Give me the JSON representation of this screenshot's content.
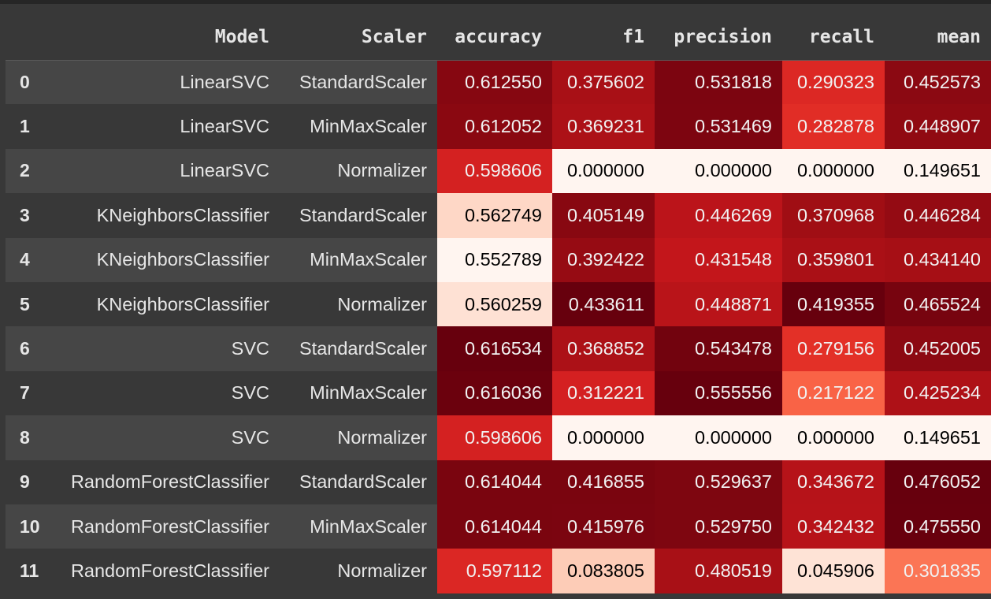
{
  "table": {
    "columns": [
      "Model",
      "Scaler",
      "accuracy",
      "f1",
      "precision",
      "recall",
      "mean"
    ],
    "rows": [
      {
        "index": "0",
        "model": "LinearSVC",
        "scaler": "StandardScaler",
        "accuracy": "0.612550",
        "f1": "0.375602",
        "precision": "0.531818",
        "recall": "0.290323",
        "mean": "0.452573"
      },
      {
        "index": "1",
        "model": "LinearSVC",
        "scaler": "MinMaxScaler",
        "accuracy": "0.612052",
        "f1": "0.369231",
        "precision": "0.531469",
        "recall": "0.282878",
        "mean": "0.448907"
      },
      {
        "index": "2",
        "model": "LinearSVC",
        "scaler": "Normalizer",
        "accuracy": "0.598606",
        "f1": "0.000000",
        "precision": "0.000000",
        "recall": "0.000000",
        "mean": "0.149651"
      },
      {
        "index": "3",
        "model": "KNeighborsClassifier",
        "scaler": "StandardScaler",
        "accuracy": "0.562749",
        "f1": "0.405149",
        "precision": "0.446269",
        "recall": "0.370968",
        "mean": "0.446284"
      },
      {
        "index": "4",
        "model": "KNeighborsClassifier",
        "scaler": "MinMaxScaler",
        "accuracy": "0.552789",
        "f1": "0.392422",
        "precision": "0.431548",
        "recall": "0.359801",
        "mean": "0.434140"
      },
      {
        "index": "5",
        "model": "KNeighborsClassifier",
        "scaler": "Normalizer",
        "accuracy": "0.560259",
        "f1": "0.433611",
        "precision": "0.448871",
        "recall": "0.419355",
        "mean": "0.465524"
      },
      {
        "index": "6",
        "model": "SVC",
        "scaler": "StandardScaler",
        "accuracy": "0.616534",
        "f1": "0.368852",
        "precision": "0.543478",
        "recall": "0.279156",
        "mean": "0.452005"
      },
      {
        "index": "7",
        "model": "SVC",
        "scaler": "MinMaxScaler",
        "accuracy": "0.616036",
        "f1": "0.312221",
        "precision": "0.555556",
        "recall": "0.217122",
        "mean": "0.425234"
      },
      {
        "index": "8",
        "model": "SVC",
        "scaler": "Normalizer",
        "accuracy": "0.598606",
        "f1": "0.000000",
        "precision": "0.000000",
        "recall": "0.000000",
        "mean": "0.149651"
      },
      {
        "index": "9",
        "model": "RandomForestClassifier",
        "scaler": "StandardScaler",
        "accuracy": "0.614044",
        "f1": "0.416855",
        "precision": "0.529637",
        "recall": "0.343672",
        "mean": "0.476052"
      },
      {
        "index": "10",
        "model": "RandomForestClassifier",
        "scaler": "MinMaxScaler",
        "accuracy": "0.614044",
        "f1": "0.415976",
        "precision": "0.529750",
        "recall": "0.342432",
        "mean": "0.475550"
      },
      {
        "index": "11",
        "model": "RandomForestClassifier",
        "scaler": "Normalizer",
        "accuracy": "0.597112",
        "f1": "0.083805",
        "precision": "0.480519",
        "recall": "0.045906",
        "mean": "0.301835"
      }
    ]
  },
  "colors": {
    "gradient_low": "#fff5f0",
    "gradient_mid": "#d32f2f",
    "gradient_high": "#67000d",
    "text_dark": "#000000",
    "text_light": "#f1f1f1"
  }
}
